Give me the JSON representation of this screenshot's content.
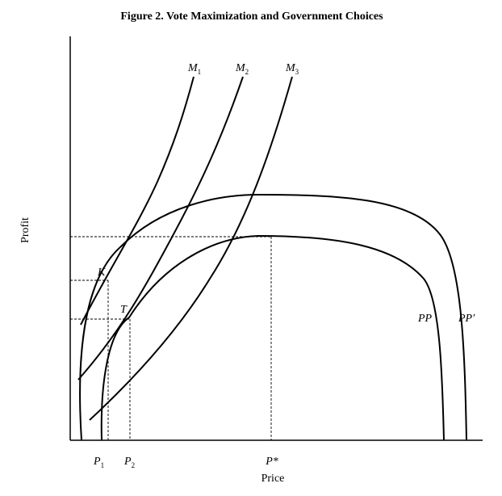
{
  "title": "Figure 2. Vote Maximization and Government Choices",
  "axes": {
    "x_label": "Price",
    "y_label": "Profit"
  },
  "curves": {
    "m1": {
      "base": "M",
      "sub": "1"
    },
    "m2": {
      "base": "M",
      "sub": "2"
    },
    "m3": {
      "base": "M",
      "sub": "3"
    },
    "pp": "PP",
    "pp_prime": "PP′"
  },
  "points": {
    "k": "K",
    "t": "T"
  },
  "x_ticks": {
    "p1": {
      "base": "P",
      "sub": "1"
    },
    "p2": {
      "base": "P",
      "sub": "2"
    },
    "p_star": "P*"
  }
}
